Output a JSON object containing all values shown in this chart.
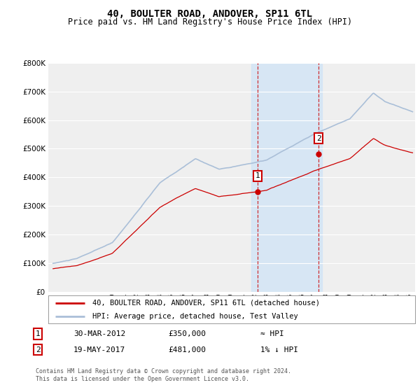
{
  "title": "40, BOULTER ROAD, ANDOVER, SP11 6TL",
  "subtitle": "Price paid vs. HM Land Registry's House Price Index (HPI)",
  "ylim": [
    0,
    800000
  ],
  "yticks": [
    0,
    100000,
    200000,
    300000,
    400000,
    500000,
    600000,
    700000,
    800000
  ],
  "xlim_start": 1994.6,
  "xlim_end": 2025.5,
  "background_color": "#ffffff",
  "plot_bg_color": "#efefef",
  "grid_color": "#ffffff",
  "hpi_color": "#aabfd8",
  "price_color": "#cc0000",
  "marker1_date": 2012.24,
  "marker1_price": 350000,
  "marker1_label": "1",
  "marker1_date_str": "30-MAR-2012",
  "marker1_price_str": "£350,000",
  "marker1_rel": "≈ HPI",
  "marker2_date": 2017.38,
  "marker2_price": 481000,
  "marker2_label": "2",
  "marker2_date_str": "19-MAY-2017",
  "marker2_price_str": "£481,000",
  "marker2_rel": "1% ↓ HPI",
  "legend_line1": "40, BOULTER ROAD, ANDOVER, SP11 6TL (detached house)",
  "legend_line2": "HPI: Average price, detached house, Test Valley",
  "footer1": "Contains HM Land Registry data © Crown copyright and database right 2024.",
  "footer2": "This data is licensed under the Open Government Licence v3.0.",
  "shade_x1": 2011.7,
  "shade_x2": 2017.65
}
